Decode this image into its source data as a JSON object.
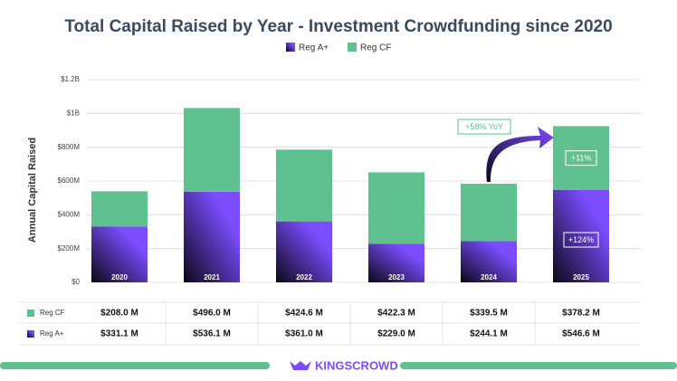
{
  "chart_data": {
    "type": "bar",
    "stacked": true,
    "title": "Total Capital Raised by Year - Investment Crowdfunding since 2020",
    "y_label": "Annual Capital Raised",
    "categories": [
      "2020",
      "2021",
      "2022",
      "2023",
      "2024",
      "2025"
    ],
    "series": [
      {
        "name": "Reg A+",
        "color": "#7b4dff",
        "values": [
          331100000,
          536100000,
          361000000,
          229000000,
          244100000,
          546600000
        ],
        "value_labels": [
          "$331.1 M",
          "$536.1 M",
          "$361.0 M",
          "$229.0 M",
          "$244.1 M",
          "$546.6 M"
        ]
      },
      {
        "name": "Reg CF",
        "color": "#5ec18f",
        "values": [
          208000000,
          496000000,
          424600000,
          422300000,
          339500000,
          378200000
        ],
        "value_labels": [
          "$208.0 M",
          "$496.0 M",
          "$424.6 M",
          "$422.3 M",
          "$339.5 M",
          "$378.2 M"
        ]
      }
    ],
    "ylim": [
      0,
      1200000000
    ],
    "yticks": [
      {
        "value": 0,
        "label": "$0"
      },
      {
        "value": 200000000,
        "label": "$200M"
      },
      {
        "value": 400000000,
        "label": "$400M"
      },
      {
        "value": 600000000,
        "label": "$600M"
      },
      {
        "value": 800000000,
        "label": "$800M"
      },
      {
        "value": 1000000000,
        "label": "$1B"
      },
      {
        "value": 1200000000,
        "label": "$1.2B"
      }
    ],
    "grid": true,
    "annotations": [
      "+58% YoY",
      "+11%",
      "+124%"
    ],
    "brand": "KINGSCROWD"
  }
}
